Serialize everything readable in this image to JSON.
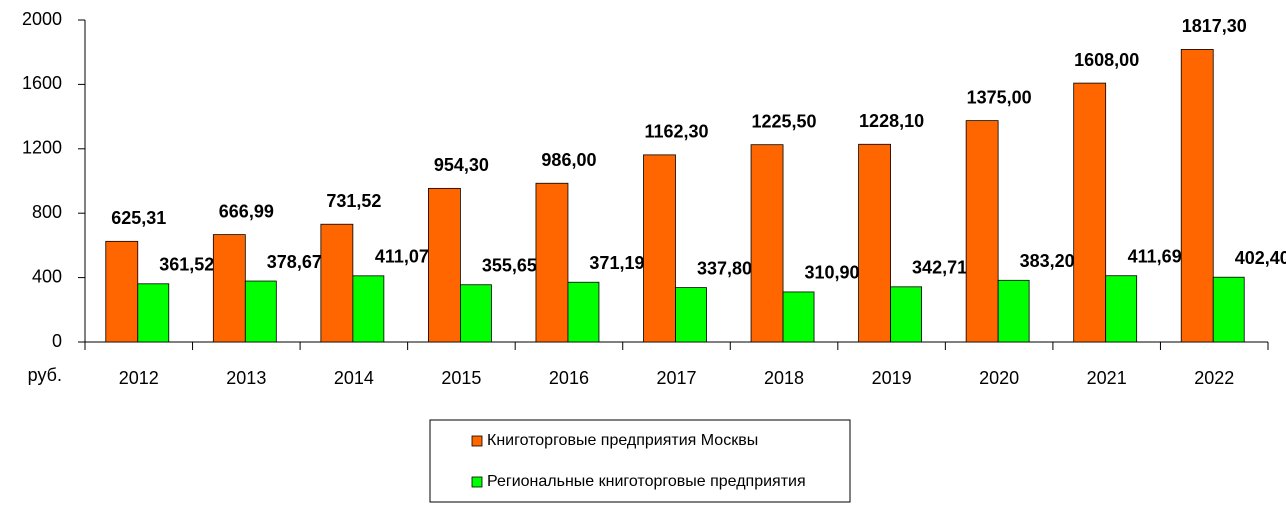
{
  "chart_data": {
    "type": "bar",
    "categories": [
      "2012",
      "2013",
      "2014",
      "2015",
      "2016",
      "2017",
      "2018",
      "2019",
      "2020",
      "2021",
      "2022"
    ],
    "x_label": "руб.",
    "series": [
      {
        "name": "Книготорговые предприятия Москвы",
        "color": "#ff6600",
        "values": [
          625.31,
          666.99,
          731.52,
          954.3,
          986.0,
          1162.3,
          1225.5,
          1228.1,
          1375.0,
          1608.0,
          1817.3
        ],
        "value_labels": [
          "625,31",
          "666,99",
          "731,52",
          "954,30",
          "986,00",
          "1162,30",
          "1225,50",
          "1228,10",
          "1375,00",
          "1608,00",
          "1817,30"
        ]
      },
      {
        "name": "Региональные книготорговые предприятия",
        "color": "#00ff00",
        "values": [
          361.52,
          378.67,
          411.07,
          355.65,
          371.19,
          337.8,
          310.9,
          342.71,
          383.2,
          411.69,
          402.4
        ],
        "value_labels": [
          "361,52",
          "378,67",
          "411,07",
          "355,65",
          "371,19",
          "337,80",
          "310,90",
          "342,71",
          "383,20",
          "411,69",
          "402,40"
        ]
      }
    ],
    "ylim": [
      0,
      2000
    ],
    "yticks": [
      0,
      400,
      800,
      1200,
      1600,
      2000
    ],
    "grid": false,
    "legend": "bottom"
  }
}
